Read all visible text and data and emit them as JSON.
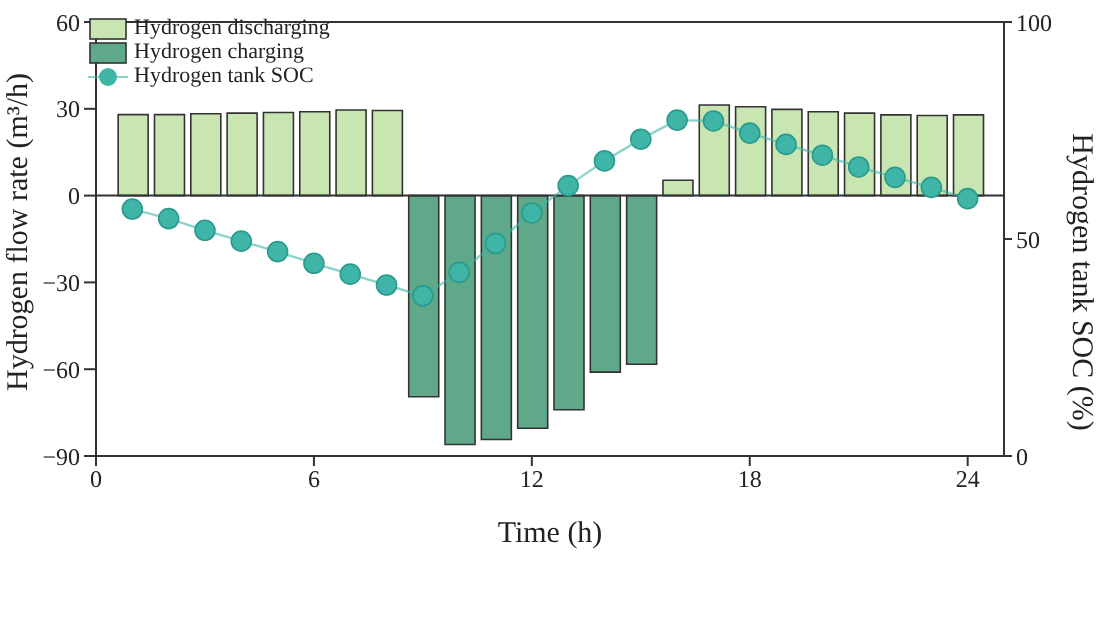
{
  "chart_data": {
    "type": "bar",
    "xlabel": "Time (h)",
    "ylabel": "Hydrogen flow rate (m³/h)",
    "y2label": "Hydrogen tank SOC (%)",
    "x": [
      1,
      2,
      3,
      4,
      5,
      6,
      7,
      8,
      9,
      10,
      11,
      12,
      13,
      14,
      15,
      16,
      17,
      18,
      19,
      20,
      21,
      22,
      23,
      24
    ],
    "series": [
      {
        "name": "Hydrogen discharging",
        "color": "#c9e6b2",
        "values": [
          28,
          28,
          28.3,
          28.5,
          28.7,
          29,
          29.6,
          29.4,
          null,
          null,
          null,
          null,
          null,
          null,
          null,
          5.3,
          31.3,
          30.7,
          29.8,
          29,
          28.5,
          27.9,
          27.7,
          27.9
        ]
      },
      {
        "name": "Hydrogen charging",
        "color": "#5fa98a",
        "values": [
          null,
          null,
          null,
          null,
          null,
          null,
          null,
          null,
          -69.5,
          -86,
          -84.3,
          -80.4,
          -74,
          -61,
          -58.3,
          null,
          null,
          null,
          null,
          null,
          null,
          null,
          null,
          null
        ]
      },
      {
        "name": "Hydrogen tank SOC",
        "type": "line",
        "axis": "y2",
        "color": "#3fb5a8",
        "marker": "circle",
        "values": [
          56.9,
          54.7,
          52,
          49.5,
          47.1,
          44.4,
          41.9,
          39.4,
          36.9,
          42.3,
          49,
          56,
          62.3,
          68,
          73,
          77.4,
          77.2,
          74.4,
          71.8,
          69.3,
          66.6,
          64.2,
          61.9,
          59.3
        ]
      }
    ],
    "xlim": [
      0,
      25
    ],
    "xticks": [
      0,
      6,
      12,
      18,
      24
    ],
    "ylim": [
      -90,
      60
    ],
    "yticks": [
      -90,
      -60,
      -30,
      0,
      30,
      60
    ],
    "y2lim": [
      0,
      100
    ],
    "y2ticks": [
      0,
      50,
      100
    ],
    "ref_lines": [
      {
        "axis": "y",
        "value": 0,
        "color": "#333333"
      }
    ],
    "grid": false,
    "legend": "top left"
  }
}
